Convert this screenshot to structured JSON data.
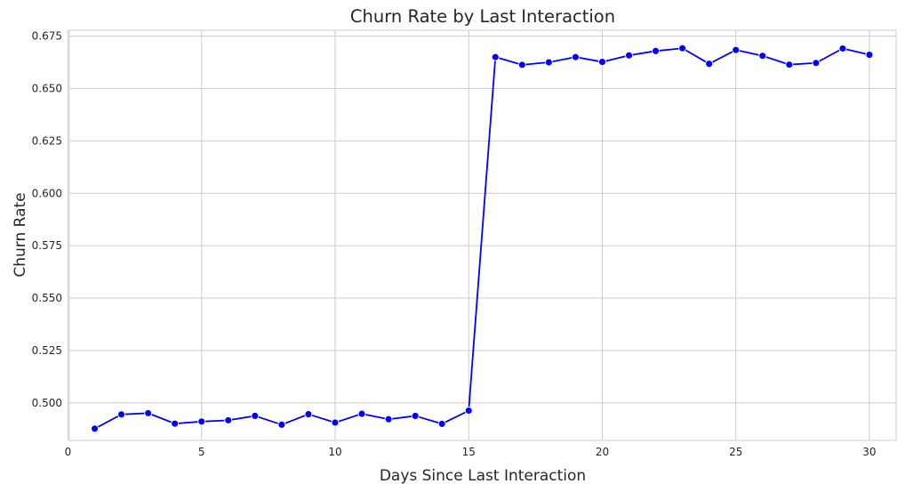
{
  "chart_data": {
    "type": "line",
    "title": "Churn Rate by Last Interaction",
    "xlabel": "Days Since Last Interaction",
    "ylabel": "Churn Rate",
    "xlim": [
      0.05,
      31.0
    ],
    "ylim": [
      0.4821,
      0.6778
    ],
    "xticks": [
      0,
      5,
      10,
      15,
      20,
      25,
      30
    ],
    "xtick_labels": [
      "0",
      "5",
      "10",
      "15",
      "20",
      "25",
      "30"
    ],
    "yticks": [
      0.5,
      0.525,
      0.55,
      0.575,
      0.6,
      0.625,
      0.65,
      0.675
    ],
    "ytick_labels": [
      "0.500",
      "0.525",
      "0.550",
      "0.575",
      "0.600",
      "0.625",
      "0.650",
      "0.675"
    ],
    "grid": true,
    "series": [
      {
        "color": "#0000ff",
        "marker": "circle",
        "x": [
          1,
          2,
          3,
          4,
          5,
          6,
          7,
          8,
          9,
          10,
          11,
          12,
          13,
          14,
          15,
          16,
          17,
          18,
          19,
          20,
          21,
          22,
          23,
          24,
          25,
          26,
          27,
          28,
          29,
          30
        ],
        "y": [
          0.4877,
          0.4945,
          0.4951,
          0.4901,
          0.4911,
          0.4917,
          0.4938,
          0.4896,
          0.4946,
          0.4906,
          0.4948,
          0.4922,
          0.4938,
          0.49,
          0.4963,
          0.665,
          0.6613,
          0.6625,
          0.665,
          0.6627,
          0.6658,
          0.6679,
          0.6692,
          0.6618,
          0.6684,
          0.6656,
          0.6614,
          0.6622,
          0.6691,
          0.6661
        ]
      }
    ]
  }
}
